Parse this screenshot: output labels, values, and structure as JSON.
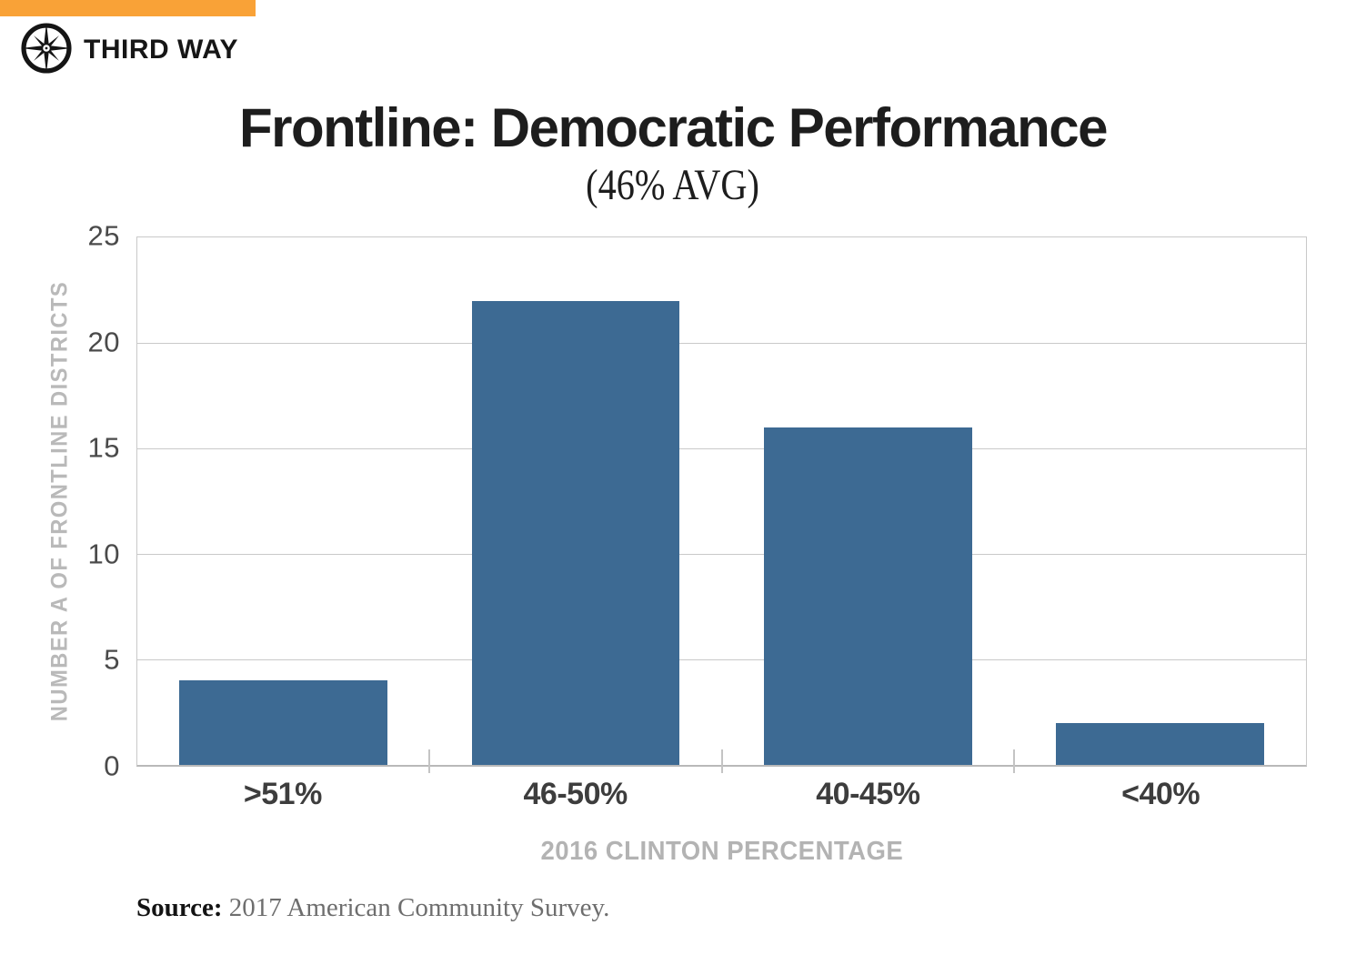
{
  "brand": {
    "name": "THIRD WAY",
    "accent_color": "#F9A237",
    "logo_icon": "compass-icon"
  },
  "title": "Frontline: Democratic Performance",
  "subtitle": "(46% AVG)",
  "source": {
    "label": "Source:",
    "text": " 2017 American Community Survey."
  },
  "chart_data": {
    "type": "bar",
    "title": "Frontline: Democratic Performance (46% AVG)",
    "categories": [
      ">51%",
      "46-50%",
      "40-45%",
      "<40%"
    ],
    "values": [
      4,
      22,
      16,
      2
    ],
    "xlabel": "2016 CLINTON PERCENTAGE",
    "ylabel": "NUMBER A OF FRONTLINE DISTRICTS",
    "ylim": [
      0,
      25
    ],
    "yticks": [
      0,
      5,
      10,
      15,
      20,
      25
    ],
    "grid": true,
    "legend_position": "none",
    "bar_color": "#3D6A93",
    "axis_text_color": "#b3b3b3",
    "tick_text_color": "#4a4a4a"
  }
}
